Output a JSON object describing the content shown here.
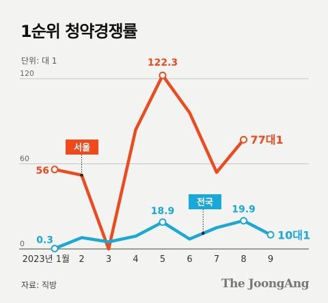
{
  "title": "1순위 청약경쟁률",
  "unit": "단위: 대 1",
  "source": "자료: 직방",
  "brand": "The JoongAng",
  "colors": {
    "seoul": "#f04a1c",
    "national": "#1aa8d8"
  },
  "chart_data": {
    "type": "line",
    "categories": [
      "2023년 1월",
      "2",
      "3",
      "4",
      "5",
      "6",
      "7",
      "8",
      "9"
    ],
    "yticks": [
      "0",
      "60",
      "120"
    ],
    "ylim": [
      0,
      135
    ],
    "series": [
      {
        "name": "서울",
        "values": [
          56,
          52,
          0,
          84,
          122.3,
          96,
          54,
          77,
          null
        ]
      },
      {
        "name": "전국",
        "values": [
          0.3,
          8,
          5,
          9,
          18.9,
          7,
          15,
          19.9,
          10
        ]
      }
    ],
    "data_labels": [
      {
        "series": 0,
        "index": 0,
        "text": "56"
      },
      {
        "series": 0,
        "index": 4,
        "text": "122.3"
      },
      {
        "series": 0,
        "index": 7,
        "text": "77대1"
      },
      {
        "series": 1,
        "index": 0,
        "text": "0.3"
      },
      {
        "series": 1,
        "index": 4,
        "text": "18.9"
      },
      {
        "series": 1,
        "index": 7,
        "text": "19.9"
      },
      {
        "series": 1,
        "index": 8,
        "text": "10대1"
      }
    ]
  }
}
